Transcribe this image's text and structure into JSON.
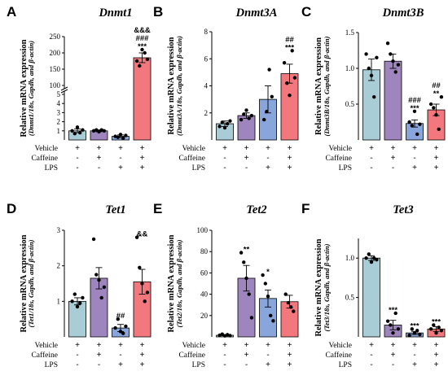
{
  "colors": {
    "vehicle": "#a8cdd6",
    "caffeine": "#9f85bd",
    "lps": "#88a5dc",
    "both": "#f2787e"
  },
  "row_labels": [
    "Vehicle",
    "Caffeine",
    "LPS"
  ],
  "signs": {
    "vehicle": [
      "+",
      "+",
      "+",
      "+"
    ],
    "caffeine": [
      "-",
      "+",
      "-",
      "+"
    ],
    "lps": [
      "-",
      "-",
      "+",
      "+"
    ]
  },
  "chart_data": [
    {
      "type": "bar",
      "panel": "A",
      "title": "Dnmt1",
      "ylabel": "Relative mRNA expression",
      "ylabel_sub": "(Dnmt1/18s, Gapdh, and β-actin)",
      "broken_axis": true,
      "lower_ylim": [
        0,
        5
      ],
      "upper_ylim": [
        100,
        250
      ],
      "lower_ticks": [
        "1",
        "2",
        "3",
        "4",
        "5"
      ],
      "upper_ticks": [
        "100",
        "150",
        "200",
        "250"
      ],
      "categories": [
        "Vehicle",
        "Caffeine",
        "LPS",
        "Caffeine+LPS"
      ],
      "values": [
        1.0,
        1.0,
        0.4,
        185
      ],
      "errors": [
        0.2,
        0.1,
        0.15,
        15
      ],
      "points": [
        [
          1.0,
          0.7,
          1.4,
          0.8,
          1.1
        ],
        [
          1.0,
          1.1,
          0.9,
          1.1,
          1.0
        ],
        [
          0.4,
          0.3,
          0.6,
          0.2,
          0.5
        ],
        [
          175,
          160,
          210,
          200,
          180
        ]
      ],
      "significance": [
        [
          "",
          ""
        ],
        [
          "",
          ""
        ],
        [
          "",
          ""
        ],
        [
          "&&&",
          "###",
          "***"
        ]
      ]
    },
    {
      "type": "bar",
      "panel": "B",
      "title": "Dnmt3A",
      "ylabel": "Relative mRNA expression",
      "ylabel_sub": "(Dnmt3A/18s, Gapdh, and β-actin)",
      "ylim": [
        0,
        8
      ],
      "ticks": [
        "2",
        "4",
        "6",
        "8"
      ],
      "categories": [
        "Vehicle",
        "Caffeine",
        "LPS",
        "Caffeine+LPS"
      ],
      "values": [
        1.2,
        1.8,
        3.0,
        4.9
      ],
      "errors": [
        0.2,
        0.2,
        1.0,
        0.7
      ],
      "points": [
        [
          1.0,
          1.3,
          0.9,
          1.2,
          1.4
        ],
        [
          1.5,
          1.9,
          2.2,
          1.6,
          1.8
        ],
        [
          1.5,
          2.1,
          5.2,
          3.2
        ],
        [
          5.7,
          4.2,
          3.3,
          6.6,
          4.6
        ]
      ],
      "significance": [
        [
          "",
          ""
        ],
        [
          "",
          ""
        ],
        [
          "",
          ""
        ],
        [
          "##",
          "***"
        ]
      ]
    },
    {
      "type": "bar",
      "panel": "C",
      "title": "Dnmt3B",
      "ylabel": "Relative mRNA expression",
      "ylabel_sub": "(Dnmt3B/18s, Gapdh, and β-actin)",
      "ylim": [
        0,
        1.5
      ],
      "ticks": [
        "0.5",
        "1.0",
        "1.5"
      ],
      "categories": [
        "Vehicle",
        "Caffeine",
        "LPS",
        "Caffeine+LPS"
      ],
      "values": [
        0.98,
        1.1,
        0.23,
        0.42
      ],
      "errors": [
        0.15,
        0.1,
        0.05,
        0.08
      ],
      "points": [
        [
          1.2,
          1.0,
          0.9,
          0.6,
          1.15
        ],
        [
          1.35,
          1.2,
          1.1,
          0.95,
          1.05
        ],
        [
          0.25,
          0.2,
          0.4,
          0.08,
          0.22
        ],
        [
          0.5,
          0.45,
          0.35,
          0.15,
          0.6
        ]
      ],
      "significance": [
        [
          "",
          ""
        ],
        [
          "",
          ""
        ],
        [
          "###",
          "***"
        ],
        [
          "##",
          "**"
        ]
      ]
    },
    {
      "type": "bar",
      "panel": "D",
      "title": "Tet1",
      "ylabel": "Relative mRNA expression",
      "ylabel_sub": "(Tet1/18s, Gapdh, and β-actin)",
      "ylim": [
        0,
        3
      ],
      "ticks": [
        "1",
        "2",
        "3"
      ],
      "categories": [
        "Vehicle",
        "Caffeine",
        "LPS",
        "Caffeine+LPS"
      ],
      "values": [
        1.0,
        1.65,
        0.25,
        1.55
      ],
      "errors": [
        0.1,
        0.3,
        0.1,
        0.35
      ],
      "points": [
        [
          1.0,
          1.2,
          0.85,
          0.95,
          1.1
        ],
        [
          2.75,
          1.75,
          1.6,
          1.1,
          1.4
        ],
        [
          0.25,
          0.5,
          0.15,
          0.1,
          0.3
        ],
        [
          2.8,
          1.95,
          1.5,
          1.0,
          1.25
        ]
      ],
      "significance": [
        [
          "",
          ""
        ],
        [
          "",
          ""
        ],
        [
          "",
          "##"
        ],
        [
          "",
          "&&"
        ]
      ]
    },
    {
      "type": "bar",
      "panel": "E",
      "title": "Tet2",
      "ylabel": "Relative mRNA expression",
      "ylabel_sub": "(Tet2/18s, Gapdh, and β-actin)",
      "ylim": [
        0,
        100
      ],
      "ticks": [
        "20",
        "40",
        "60",
        "80",
        "100"
      ],
      "categories": [
        "Vehicle",
        "Caffeine",
        "LPS",
        "Caffeine+LPS"
      ],
      "values": [
        1.5,
        55,
        36,
        33
      ],
      "errors": [
        0.5,
        12,
        8,
        6
      ],
      "points": [
        [
          1.5,
          2.5,
          1.0,
          2.0,
          1.2
        ],
        [
          79,
          70,
          55,
          40,
          18
        ],
        [
          58,
          50,
          38,
          20,
          15
        ],
        [
          40,
          32,
          28,
          24
        ]
      ],
      "significance": [
        [
          "",
          ""
        ],
        [
          "",
          "**"
        ],
        [
          "",
          "*"
        ],
        [
          "",
          ""
        ]
      ]
    },
    {
      "type": "bar",
      "panel": "F",
      "title": "Tet3",
      "ylabel": "Relative mRNA expression",
      "ylabel_sub": "(Tet3/18s, Gapdh, and β-actin)",
      "ylim": [
        0,
        1.25
      ],
      "ticks": [
        "0.5",
        "1.0"
      ],
      "categories": [
        "Vehicle",
        "Caffeine",
        "LPS",
        "Caffeine+LPS"
      ],
      "values": [
        1.0,
        0.15,
        0.05,
        0.1
      ],
      "errors": [
        0.03,
        0.06,
        0.02,
        0.03
      ],
      "points": [
        [
          1.0,
          1.05,
          0.95,
          1.0,
          0.98
        ],
        [
          0.2,
          0.15,
          0.05,
          0.3,
          0.1
        ],
        [
          0.02,
          0.1,
          0.05,
          0.08,
          0.03
        ],
        [
          0.1,
          0.15,
          0.05,
          0.12,
          0.08
        ]
      ],
      "significance": [
        [
          "",
          ""
        ],
        [
          "",
          "***"
        ],
        [
          "",
          "***"
        ],
        [
          "",
          "***"
        ]
      ]
    }
  ]
}
